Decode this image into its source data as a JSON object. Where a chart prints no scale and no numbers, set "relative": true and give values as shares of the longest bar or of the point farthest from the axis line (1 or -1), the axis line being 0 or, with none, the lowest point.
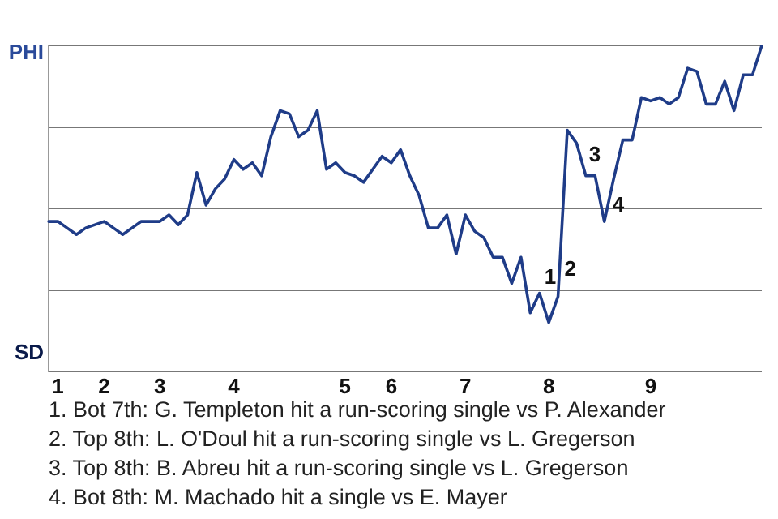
{
  "chart_data": {
    "type": "line",
    "color": "#1f3c88",
    "marker": "none",
    "grid": "y",
    "legend": false,
    "relative": true,
    "categories": [
      null,
      "1",
      null,
      null,
      null,
      null,
      "2",
      null,
      null,
      null,
      null,
      null,
      "3",
      null,
      null,
      null,
      null,
      null,
      null,
      null,
      "4",
      null,
      null,
      null,
      null,
      null,
      null,
      null,
      null,
      null,
      null,
      null,
      "5",
      null,
      null,
      null,
      null,
      "6",
      null,
      null,
      null,
      null,
      null,
      null,
      null,
      "7",
      null,
      null,
      null,
      null,
      null,
      null,
      null,
      null,
      "8",
      null,
      null,
      null,
      null,
      null,
      null,
      null,
      null,
      null,
      null,
      "9",
      null,
      null,
      null,
      null,
      null,
      null,
      null,
      null,
      null,
      null,
      null,
      null
    ],
    "values": [
      0.46,
      0.46,
      0.44,
      0.42,
      0.44,
      0.45,
      0.46,
      0.44,
      0.42,
      0.44,
      0.46,
      0.46,
      0.46,
      0.48,
      0.45,
      0.48,
      0.61,
      0.51,
      0.56,
      0.59,
      0.65,
      0.62,
      0.64,
      0.6,
      0.72,
      0.8,
      0.79,
      0.72,
      0.74,
      0.8,
      0.62,
      0.64,
      0.61,
      0.6,
      0.58,
      0.62,
      0.66,
      0.64,
      0.68,
      0.6,
      0.54,
      0.44,
      0.44,
      0.48,
      0.36,
      0.48,
      0.43,
      0.41,
      0.35,
      0.35,
      0.27,
      0.35,
      0.18,
      0.24,
      0.15,
      0.23,
      0.74,
      0.7,
      0.6,
      0.6,
      0.46,
      0.59,
      0.71,
      0.71,
      0.84,
      0.83,
      0.84,
      0.82,
      0.84,
      0.93,
      0.92,
      0.82,
      0.82,
      0.89,
      0.8,
      0.91,
      0.91,
      1.0
    ],
    "annotations": [
      "PHI",
      "SD",
      "1",
      "2",
      "3",
      "4",
      "1. Bot 7th: G. Templeton hit a run-scoring single vs P. Alexander",
      "2. Top 8th: L. O'Doul hit a run-scoring single vs L. Gregerson",
      "3. Top 8th: B. Abreu hit a run-scoring single vs L. Gregerson",
      "4. Bot 8th: M. Machado hit a single vs E. Mayer"
    ]
  }
}
